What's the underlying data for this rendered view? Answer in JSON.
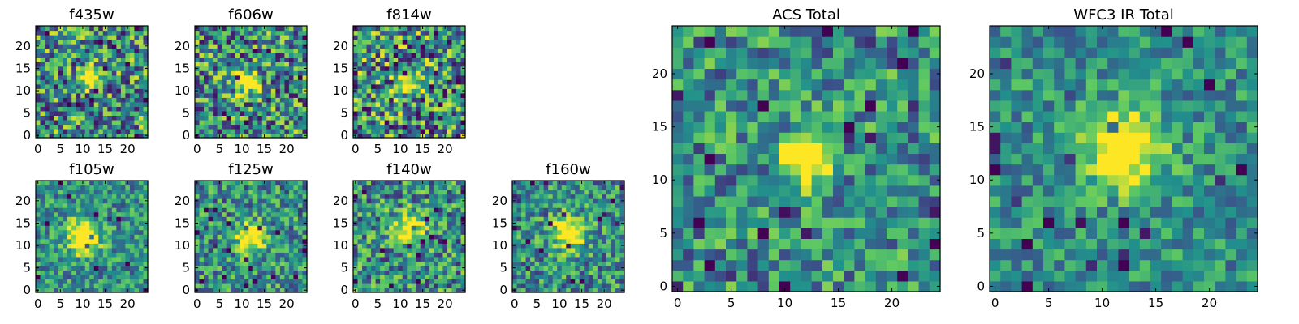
{
  "colormap": [
    "#440154",
    "#3b528b",
    "#21918c",
    "#5ec962",
    "#fde725"
  ],
  "chart_data": [
    {
      "type": "heatmap",
      "title": "f435w",
      "ticks_x": [
        "0",
        "5",
        "10",
        "15",
        "20"
      ],
      "ticks_y": [
        "0",
        "5",
        "10",
        "15",
        "20"
      ],
      "xlim": [
        0,
        25
      ],
      "ylim": [
        0,
        25
      ],
      "grid": false,
      "center": [
        12,
        13
      ],
      "peak": 0.85,
      "sigma": 1.6,
      "noise": 0.55,
      "seed": 11
    },
    {
      "type": "heatmap",
      "title": "f606w",
      "ticks_x": [
        "0",
        "5",
        "10",
        "15",
        "20"
      ],
      "ticks_y": [
        "0",
        "5",
        "10",
        "15",
        "20"
      ],
      "xlim": [
        0,
        25
      ],
      "ylim": [
        0,
        25
      ],
      "grid": false,
      "center": [
        11,
        12
      ],
      "peak": 0.95,
      "sigma": 1.6,
      "noise": 0.55,
      "seed": 23
    },
    {
      "type": "heatmap",
      "title": "f814w",
      "ticks_x": [
        "0",
        "5",
        "10",
        "15",
        "20"
      ],
      "ticks_y": [
        "0",
        "5",
        "10",
        "15",
        "20"
      ],
      "xlim": [
        0,
        25
      ],
      "ylim": [
        0,
        25
      ],
      "grid": false,
      "center": [
        12,
        12
      ],
      "peak": 0.6,
      "sigma": 1.8,
      "noise": 0.6,
      "seed": 37
    },
    {
      "type": "heatmap",
      "title": "f105w",
      "ticks_x": [
        "0",
        "5",
        "10",
        "15",
        "20"
      ],
      "ticks_y": [
        "0",
        "5",
        "10",
        "15",
        "20"
      ],
      "xlim": [
        0,
        25
      ],
      "ylim": [
        0,
        25
      ],
      "grid": false,
      "center": [
        10,
        12
      ],
      "peak": 0.7,
      "sigma": 2.6,
      "noise": 0.35,
      "seed": 41
    },
    {
      "type": "heatmap",
      "title": "f125w",
      "ticks_x": [
        "0",
        "5",
        "10",
        "15",
        "20"
      ],
      "ticks_y": [
        "0",
        "5",
        "10",
        "15",
        "20"
      ],
      "xlim": [
        0,
        25
      ],
      "ylim": [
        0,
        25
      ],
      "grid": false,
      "center": [
        12,
        12
      ],
      "peak": 0.75,
      "sigma": 2.2,
      "noise": 0.4,
      "seed": 53
    },
    {
      "type": "heatmap",
      "title": "f140w",
      "ticks_x": [
        "0",
        "5",
        "10",
        "15",
        "20"
      ],
      "ticks_y": [
        "0",
        "5",
        "10",
        "15",
        "20"
      ],
      "xlim": [
        0,
        25
      ],
      "ylim": [
        0,
        25
      ],
      "grid": false,
      "center": [
        12,
        14
      ],
      "peak": 0.65,
      "sigma": 2.4,
      "noise": 0.45,
      "seed": 67
    },
    {
      "type": "heatmap",
      "title": "f160w",
      "ticks_x": [
        "0",
        "5",
        "10",
        "15",
        "20"
      ],
      "ticks_y": [
        "0",
        "5",
        "10",
        "15",
        "20"
      ],
      "xlim": [
        0,
        25
      ],
      "ylim": [
        0,
        25
      ],
      "grid": false,
      "center": [
        12,
        13
      ],
      "peak": 0.75,
      "sigma": 2.4,
      "noise": 0.4,
      "seed": 79
    },
    {
      "type": "heatmap",
      "title": "ACS Total",
      "ticks_x": [
        "0",
        "5",
        "10",
        "15",
        "20"
      ],
      "ticks_y": [
        "0",
        "5",
        "10",
        "15",
        "20"
      ],
      "xlim": [
        0,
        25
      ],
      "ylim": [
        0,
        25
      ],
      "grid": false,
      "center": [
        12,
        12
      ],
      "peak": 0.95,
      "sigma": 1.5,
      "noise": 0.4,
      "seed": 91
    },
    {
      "type": "heatmap",
      "title": "WFC3 IR Total",
      "ticks_x": [
        "0",
        "5",
        "10",
        "15",
        "20"
      ],
      "ticks_y": [
        "0",
        "5",
        "10",
        "15",
        "20"
      ],
      "xlim": [
        0,
        25
      ],
      "ylim": [
        0,
        25
      ],
      "grid": false,
      "center": [
        12,
        13
      ],
      "peak": 0.8,
      "sigma": 2.4,
      "noise": 0.3,
      "seed": 103
    }
  ]
}
